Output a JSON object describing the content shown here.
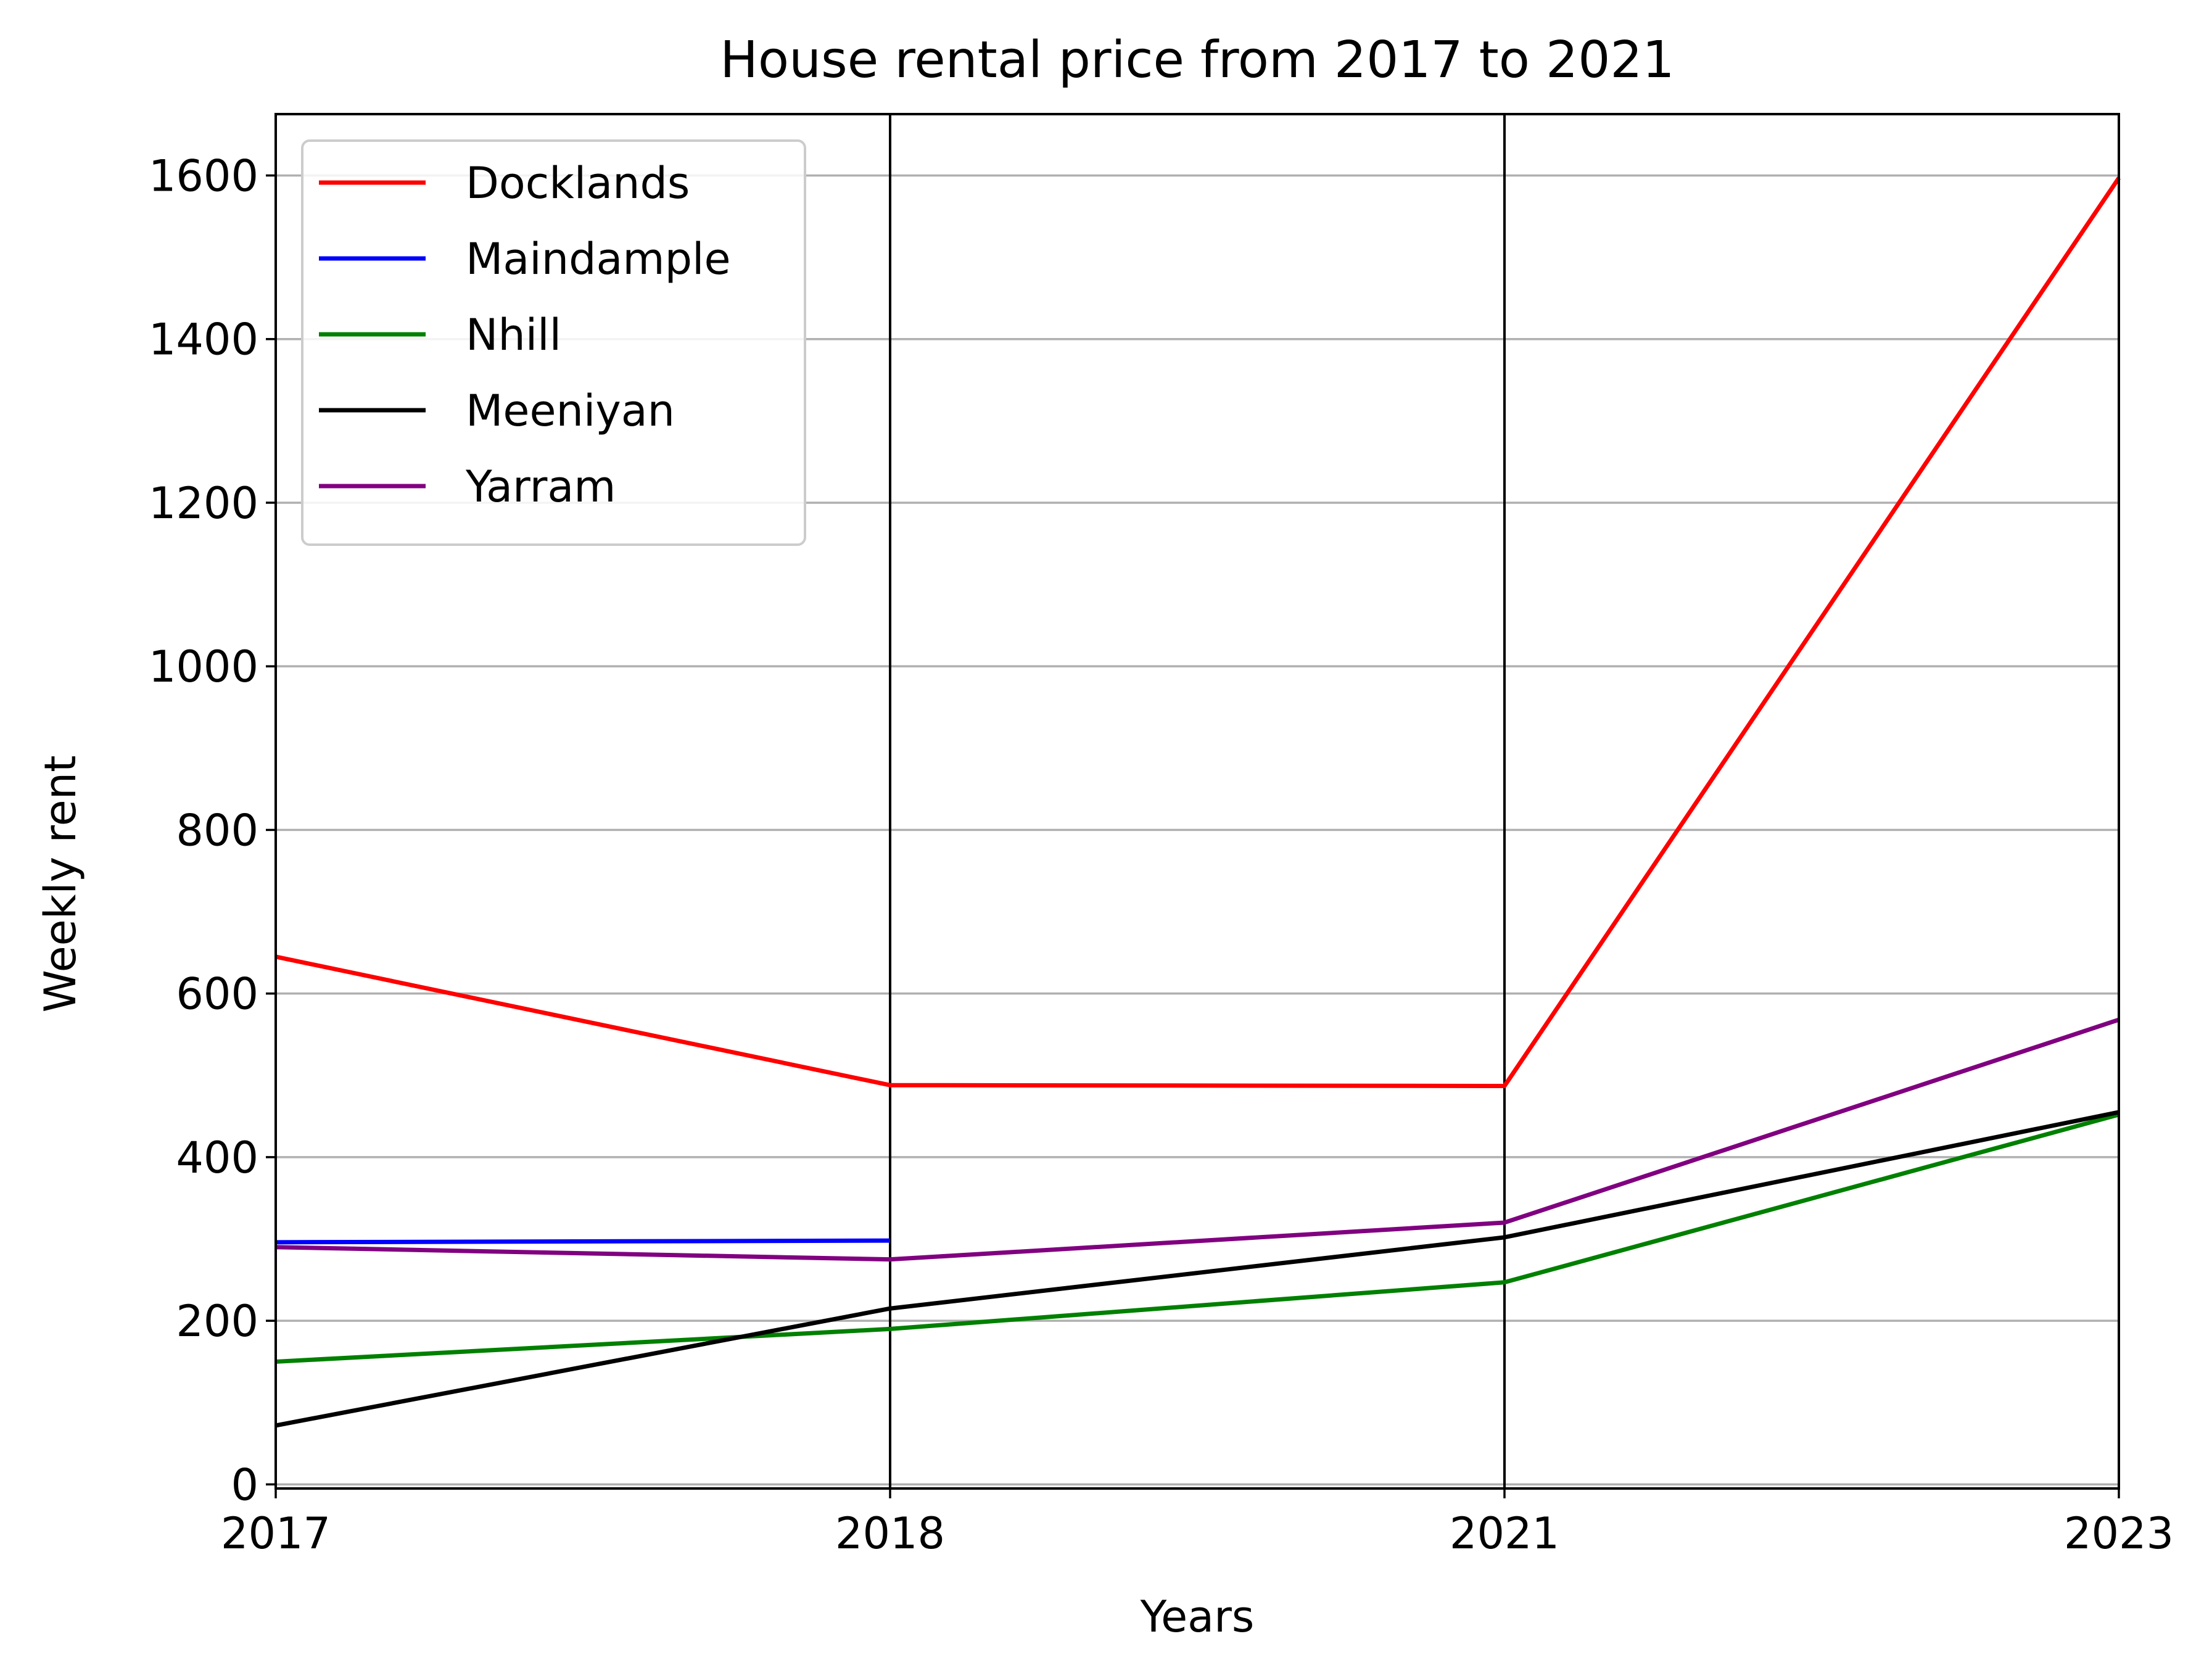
{
  "chart_data": {
    "type": "line",
    "title": "House rental price from 2017 to 2021",
    "xlabel": "Years",
    "ylabel": "Weekly rent",
    "x_categories": [
      "2017",
      "2018",
      "2021",
      "2023"
    ],
    "ylim": [
      -5,
      1675
    ],
    "yticks": [
      0,
      200,
      400,
      600,
      800,
      1000,
      1200,
      1400,
      1600
    ],
    "grid": "horizontal",
    "vertical_lines_at": [
      "2018",
      "2021"
    ],
    "legend_position": "upper-left",
    "series": [
      {
        "name": "Docklands",
        "color": "#ff0000",
        "values": [
          645,
          488,
          487,
          1597
        ]
      },
      {
        "name": "Maindample",
        "color": "#0000ff",
        "values": [
          296,
          298,
          null,
          null
        ]
      },
      {
        "name": "Nhill",
        "color": "#008000",
        "values": [
          150,
          190,
          247,
          452
        ]
      },
      {
        "name": "Meeniyan",
        "color": "#000000",
        "values": [
          72,
          215,
          302,
          455
        ]
      },
      {
        "name": "Yarram",
        "color": "#800080",
        "values": [
          290,
          275,
          320,
          568
        ]
      }
    ]
  }
}
